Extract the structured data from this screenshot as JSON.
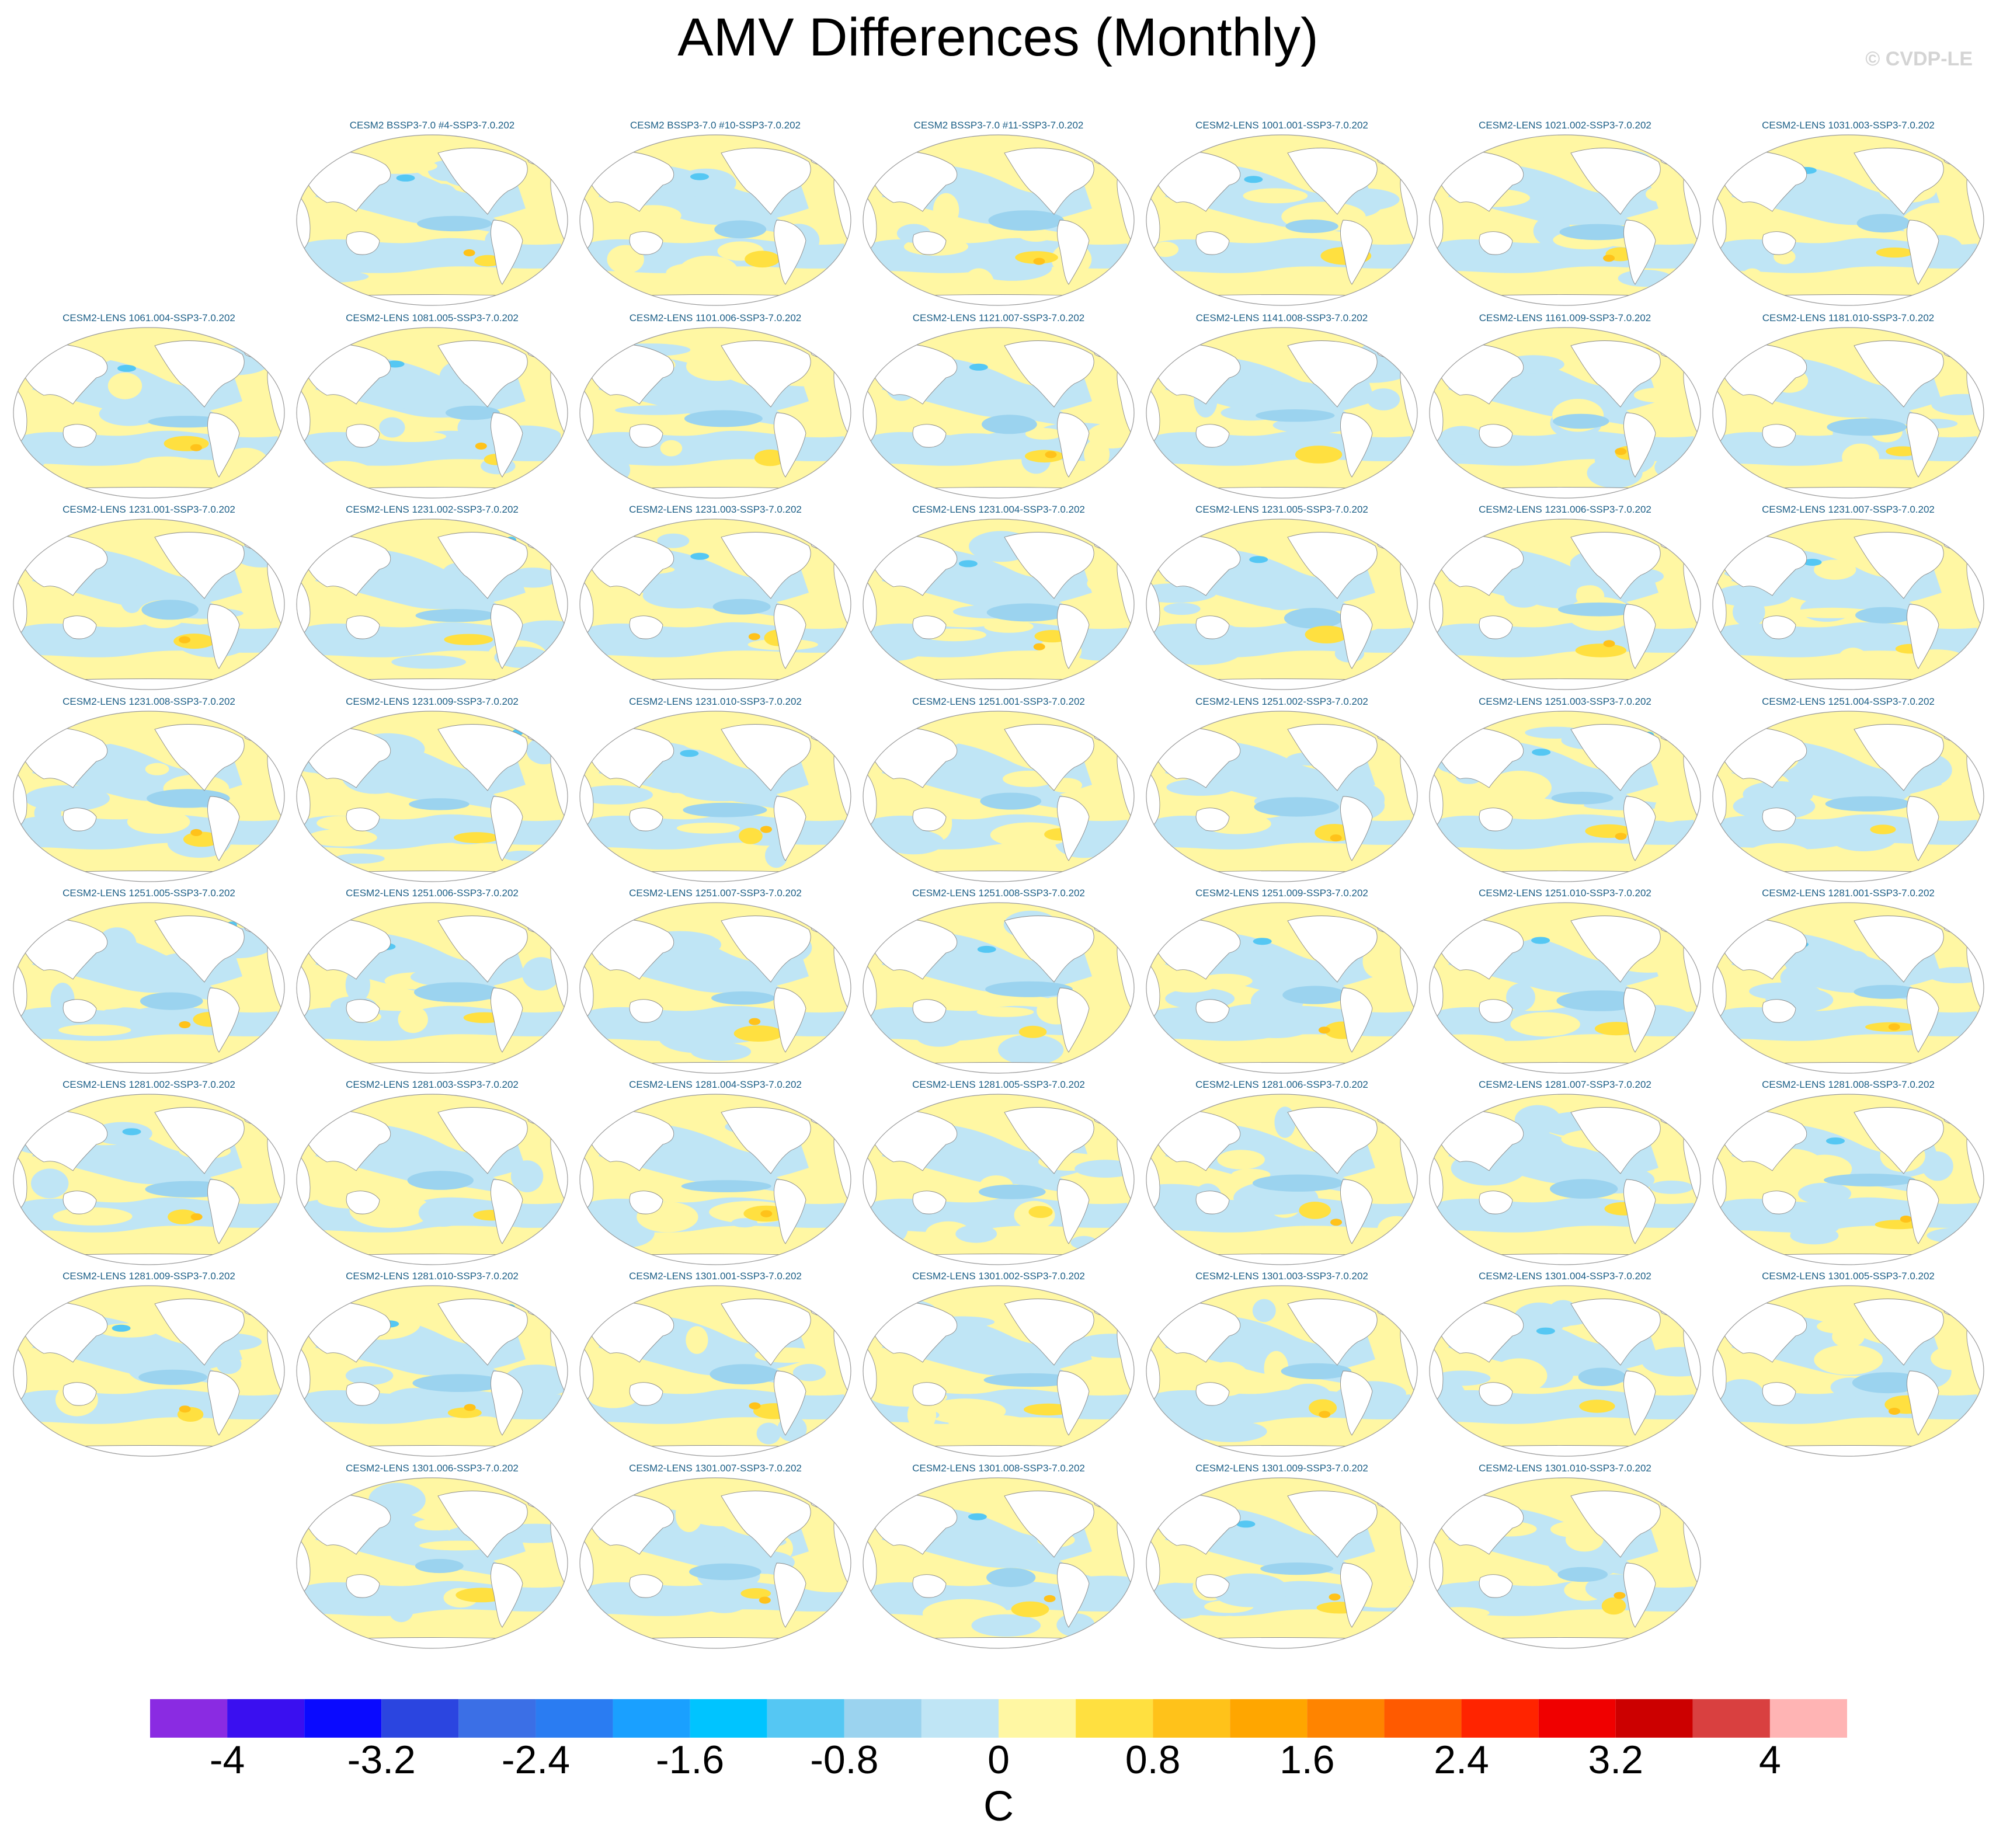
{
  "title": "AMV Differences (Monthly)",
  "watermark": "© CVDP-LE",
  "chart_data": {
    "type": "heatmap",
    "title": "AMV Differences (Monthly)",
    "map_projection": "global ellipse (Robinson-like), Pacific-centered",
    "colorbar": {
      "label": "C",
      "levels": [
        -4.4,
        -4.0,
        -3.6,
        -3.2,
        -2.8,
        -2.4,
        -2.0,
        -1.6,
        -1.2,
        -0.8,
        -0.4,
        0.0,
        0.4,
        0.8,
        1.2,
        1.6,
        2.0,
        2.4,
        2.8,
        3.2,
        3.6,
        4.0,
        4.4
      ],
      "colors": [
        "#8a2be2",
        "#3a0ff0",
        "#0a0aff",
        "#2b45e0",
        "#3b6fe6",
        "#2a7cf2",
        "#1aa0ff",
        "#00c4ff",
        "#55c7f3",
        "#9bd3ef",
        "#bfe5f5",
        "#fff7a3",
        "#ffe040",
        "#ffc21a",
        "#ffa600",
        "#ff8400",
        "#ff5a00",
        "#ff2400",
        "#f00000",
        "#cc0000",
        "#d94040",
        "#ffb4b4"
      ],
      "tick_labels": [
        "-4",
        "-3.2",
        "-2.4",
        "-1.6",
        "-0.8",
        "0",
        "0.8",
        "1.6",
        "2.4",
        "3.2",
        "4"
      ],
      "tick_values": [
        -4,
        -3.2,
        -2.4,
        -1.6,
        -0.8,
        0,
        0.8,
        1.6,
        2.4,
        3.2,
        4
      ]
    },
    "panels": [
      "CESM2 BSSP3-7.0 #4-SSP3-7.0.202",
      "CESM2 BSSP3-7.0 #10-SSP3-7.0.202",
      "CESM2 BSSP3-7.0 #11-SSP3-7.0.202",
      "CESM2-LENS 1001.001-SSP3-7.0.202",
      "CESM2-LENS 1021.002-SSP3-7.0.202",
      "CESM2-LENS 1031.003-SSP3-7.0.202",
      "CESM2-LENS 1061.004-SSP3-7.0.202",
      "CESM2-LENS 1081.005-SSP3-7.0.202",
      "CESM2-LENS 1101.006-SSP3-7.0.202",
      "CESM2-LENS 1121.007-SSP3-7.0.202",
      "CESM2-LENS 1141.008-SSP3-7.0.202",
      "CESM2-LENS 1161.009-SSP3-7.0.202",
      "CESM2-LENS 1181.010-SSP3-7.0.202",
      "CESM2-LENS 1231.001-SSP3-7.0.202",
      "CESM2-LENS 1231.002-SSP3-7.0.202",
      "CESM2-LENS 1231.003-SSP3-7.0.202",
      "CESM2-LENS 1231.004-SSP3-7.0.202",
      "CESM2-LENS 1231.005-SSP3-7.0.202",
      "CESM2-LENS 1231.006-SSP3-7.0.202",
      "CESM2-LENS 1231.007-SSP3-7.0.202",
      "CESM2-LENS 1231.008-SSP3-7.0.202",
      "CESM2-LENS 1231.009-SSP3-7.0.202",
      "CESM2-LENS 1231.010-SSP3-7.0.202",
      "CESM2-LENS 1251.001-SSP3-7.0.202",
      "CESM2-LENS 1251.002-SSP3-7.0.202",
      "CESM2-LENS 1251.003-SSP3-7.0.202",
      "CESM2-LENS 1251.004-SSP3-7.0.202",
      "CESM2-LENS 1251.005-SSP3-7.0.202",
      "CESM2-LENS 1251.006-SSP3-7.0.202",
      "CESM2-LENS 1251.007-SSP3-7.0.202",
      "CESM2-LENS 1251.008-SSP3-7.0.202",
      "CESM2-LENS 1251.009-SSP3-7.0.202",
      "CESM2-LENS 1251.010-SSP3-7.0.202",
      "CESM2-LENS 1281.001-SSP3-7.0.202",
      "CESM2-LENS 1281.002-SSP3-7.0.202",
      "CESM2-LENS 1281.003-SSP3-7.0.202",
      "CESM2-LENS 1281.004-SSP3-7.0.202",
      "CESM2-LENS 1281.005-SSP3-7.0.202",
      "CESM2-LENS 1281.006-SSP3-7.0.202",
      "CESM2-LENS 1281.007-SSP3-7.0.202",
      "CESM2-LENS 1281.008-SSP3-7.0.202",
      "CESM2-LENS 1281.009-SSP3-7.0.202",
      "CESM2-LENS 1281.010-SSP3-7.0.202",
      "CESM2-LENS 1301.001-SSP3-7.0.202",
      "CESM2-LENS 1301.002-SSP3-7.0.202",
      "CESM2-LENS 1301.003-SSP3-7.0.202",
      "CESM2-LENS 1301.004-SSP3-7.0.202",
      "CESM2-LENS 1301.005-SSP3-7.0.202",
      "CESM2-LENS 1301.006-SSP3-7.0.202",
      "CESM2-LENS 1301.007-SSP3-7.0.202",
      "CESM2-LENS 1301.008-SSP3-7.0.202",
      "CESM2-LENS 1301.009-SSP3-7.0.202",
      "CESM2-LENS 1301.010-SSP3-7.0.202"
    ]
  }
}
